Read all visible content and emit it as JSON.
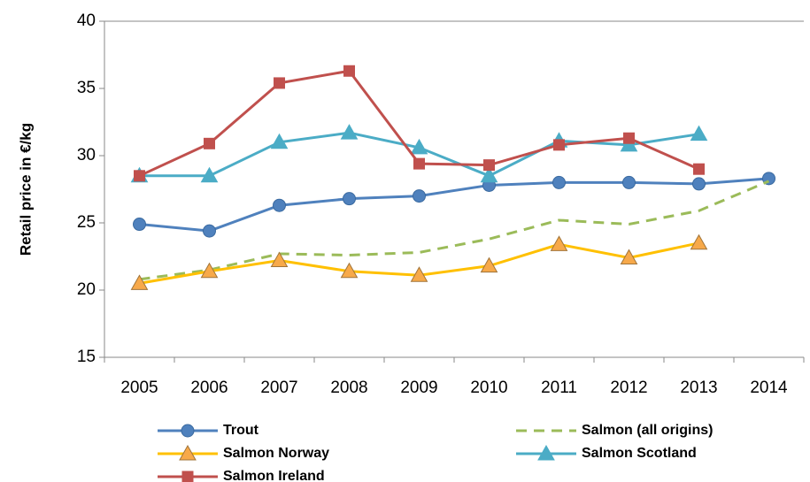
{
  "chart_data": {
    "type": "line",
    "y_label": "Retail price in €/kg",
    "categories": [
      "2005",
      "2006",
      "2007",
      "2008",
      "2009",
      "2010",
      "2011",
      "2012",
      "2013",
      "2014"
    ],
    "ylim": [
      15,
      40
    ],
    "yticks": [
      15,
      20,
      25,
      30,
      35,
      40
    ],
    "series": [
      {
        "name": "Trout",
        "color": "#4f81bd",
        "marker": "circle",
        "dashed": false,
        "values": [
          24.9,
          24.4,
          26.3,
          26.8,
          27.0,
          27.8,
          28.0,
          28.0,
          27.9,
          28.3
        ]
      },
      {
        "name": "Salmon (all origins)",
        "color": "#9bbb59",
        "marker": "none",
        "dashed": true,
        "values": [
          20.8,
          21.5,
          22.7,
          22.6,
          22.8,
          23.8,
          25.2,
          24.9,
          25.9,
          28.1
        ]
      },
      {
        "name": "Salmon Norway",
        "color": "#ffc000",
        "marker": "triangle",
        "marker_fill": "#f7a94a",
        "dashed": false,
        "values": [
          20.5,
          21.4,
          22.2,
          21.4,
          21.1,
          21.8,
          23.4,
          22.4,
          23.5,
          null
        ]
      },
      {
        "name": "Salmon Scotland",
        "color": "#4bacc6",
        "marker": "triangle",
        "dashed": false,
        "values": [
          28.5,
          28.5,
          31.0,
          31.7,
          30.6,
          28.5,
          31.1,
          30.8,
          31.6,
          null
        ]
      },
      {
        "name": "Salmon Ireland",
        "color": "#c0504d",
        "marker": "square",
        "dashed": false,
        "values": [
          28.5,
          30.9,
          35.4,
          36.3,
          29.4,
          29.3,
          30.8,
          31.3,
          29.0,
          null
        ]
      }
    ]
  }
}
